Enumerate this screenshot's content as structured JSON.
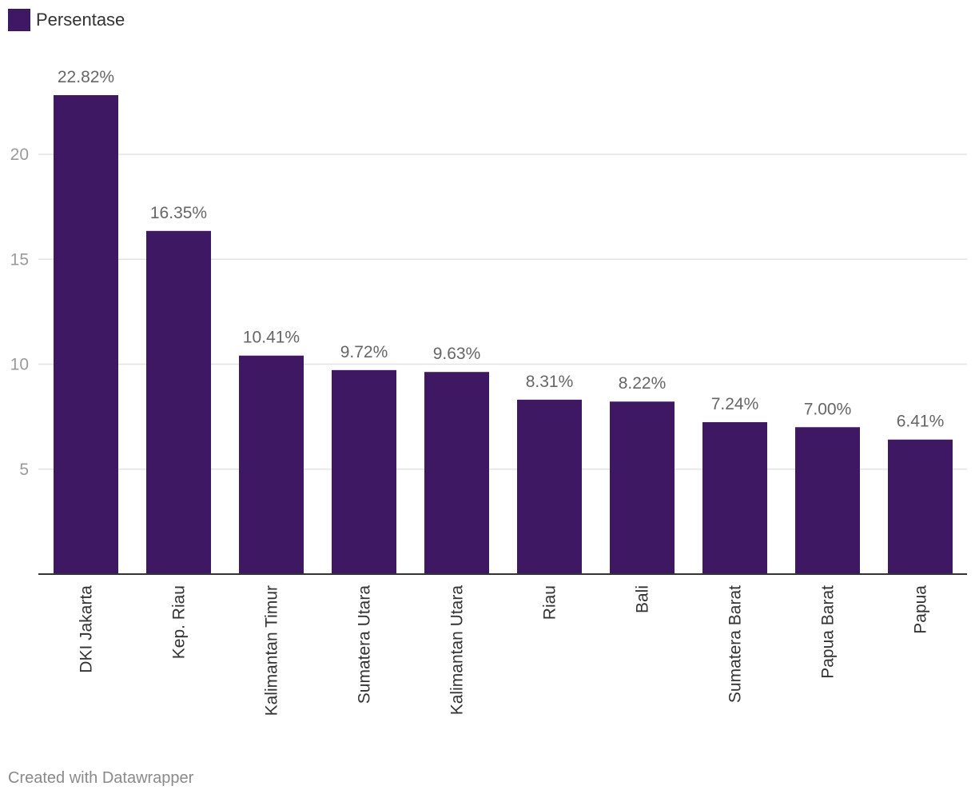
{
  "legend": {
    "label": "Persentase",
    "color": "#3f1863"
  },
  "footer": {
    "credit": "Created with Datawrapper"
  },
  "chart_data": {
    "type": "bar",
    "categories": [
      "DKI Jakarta",
      "Kep. Riau",
      "Kalimantan Timur",
      "Sumatera Utara",
      "Kalimantan Utara",
      "Riau",
      "Bali",
      "Sumatera Barat",
      "Papua Barat",
      "Papua"
    ],
    "series": [
      {
        "name": "Persentase",
        "values": [
          22.82,
          16.35,
          10.41,
          9.72,
          9.63,
          8.31,
          8.22,
          7.24,
          7.0,
          6.41
        ],
        "labels": [
          "22.82%",
          "16.35%",
          "10.41%",
          "9.72%",
          "9.63%",
          "8.31%",
          "8.22%",
          "7.24%",
          "7.00%",
          "6.41%"
        ]
      }
    ],
    "yticks": [
      5,
      10,
      15,
      20
    ],
    "ylim": [
      0,
      25
    ],
    "grid": true,
    "bar_color": "#3f1863",
    "legend_position": "top-left"
  }
}
